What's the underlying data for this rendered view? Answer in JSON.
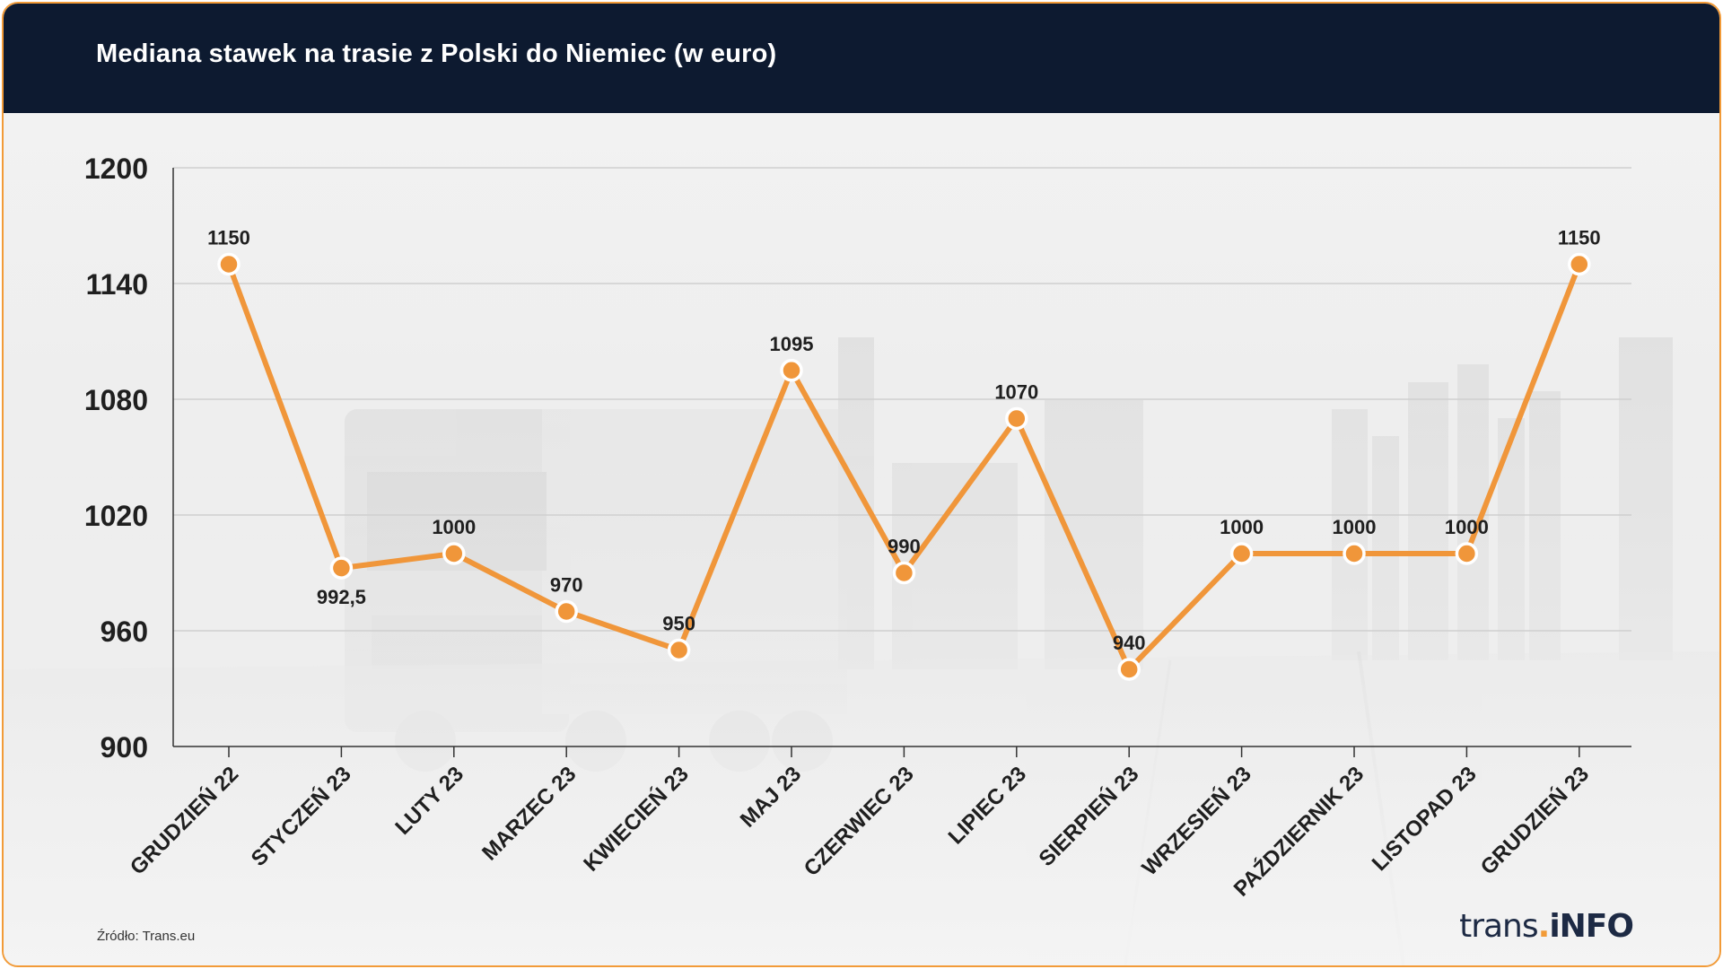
{
  "header": {
    "title": "Mediana stawek na trasie z Polski do Niemiec (w euro)"
  },
  "footer": {
    "source": "Źródło: Trans.eu"
  },
  "logo": {
    "text_regular": "trans",
    "text_dot": ".",
    "text_bold": "iNFO"
  },
  "colors": {
    "line": "#f0963a",
    "header_bg": "#0d1a30",
    "border": "#f29b38"
  },
  "chart_data": {
    "type": "line",
    "title": "Mediana stawek na trasie z Polski do Niemiec (w euro)",
    "xlabel": "",
    "ylabel": "",
    "ylim": [
      900,
      1200
    ],
    "yticks": [
      900,
      960,
      1020,
      1080,
      1140,
      1200
    ],
    "grid": true,
    "categories": [
      "GRUDZIEŃ 22",
      "STYCZEŃ 23",
      "LUTY 23",
      "MARZEC 23",
      "KWIECIEŃ 23",
      "MAJ 23",
      "CZERWIEC 23",
      "LIPIEC 23",
      "SIERPIEŃ 23",
      "WRZESIEŃ 23",
      "PAŹDZIERNIK 23",
      "LISTOPAD 23",
      "GRUDZIEŃ 23"
    ],
    "values": [
      1150,
      992.5,
      1000,
      970,
      950,
      1095,
      990,
      1070,
      940,
      1000,
      1000,
      1000,
      1150
    ],
    "data_labels": [
      "1150",
      "992,5",
      "1000",
      "970",
      "950",
      "1095",
      "990",
      "1070",
      "940",
      "1000",
      "1000",
      "1000",
      "1150"
    ]
  }
}
